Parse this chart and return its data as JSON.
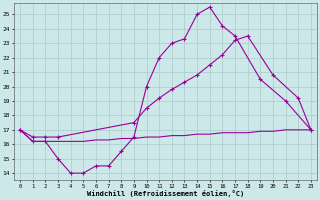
{
  "xlabel": "Windchill (Refroidissement éolien,°C)",
  "bg_color": "#cce8e8",
  "grid_color": "#aacccc",
  "line_color": "#990099",
  "xlim": [
    -0.5,
    23.5
  ],
  "ylim": [
    13.5,
    25.8
  ],
  "yticks": [
    14,
    15,
    16,
    17,
    18,
    19,
    20,
    21,
    22,
    23,
    24,
    25
  ],
  "xticks": [
    0,
    1,
    2,
    3,
    4,
    5,
    6,
    7,
    8,
    9,
    10,
    11,
    12,
    13,
    14,
    15,
    16,
    17,
    18,
    19,
    20,
    21,
    22,
    23
  ],
  "line_a_x": [
    0,
    1,
    2,
    3,
    4,
    5,
    6,
    7,
    8,
    9,
    10,
    11,
    12,
    13,
    14,
    15,
    16,
    17,
    19,
    21,
    23
  ],
  "line_a_y": [
    17.0,
    16.2,
    16.2,
    15.0,
    14.0,
    14.0,
    14.5,
    14.5,
    15.5,
    16.5,
    20.0,
    22.0,
    23.0,
    23.3,
    25.0,
    25.5,
    24.2,
    23.5,
    20.5,
    19.0,
    17.0
  ],
  "line_b_x": [
    0,
    1,
    2,
    3,
    9,
    10,
    11,
    12,
    13,
    14,
    15,
    16,
    17,
    18,
    20,
    22,
    23
  ],
  "line_b_y": [
    17.0,
    16.5,
    16.5,
    16.5,
    17.5,
    18.5,
    19.2,
    19.8,
    20.3,
    20.8,
    21.5,
    22.2,
    23.2,
    23.5,
    20.8,
    19.2,
    17.0
  ],
  "line_c_x": [
    0,
    1,
    2,
    3,
    4,
    5,
    6,
    7,
    8,
    9,
    10,
    11,
    12,
    13,
    14,
    15,
    16,
    17,
    18,
    19,
    20,
    21,
    22,
    23
  ],
  "line_c_y": [
    17.0,
    16.2,
    16.2,
    16.2,
    16.2,
    16.2,
    16.3,
    16.3,
    16.4,
    16.4,
    16.5,
    16.5,
    16.6,
    16.6,
    16.7,
    16.7,
    16.8,
    16.8,
    16.8,
    16.9,
    16.9,
    17.0,
    17.0,
    17.0
  ]
}
